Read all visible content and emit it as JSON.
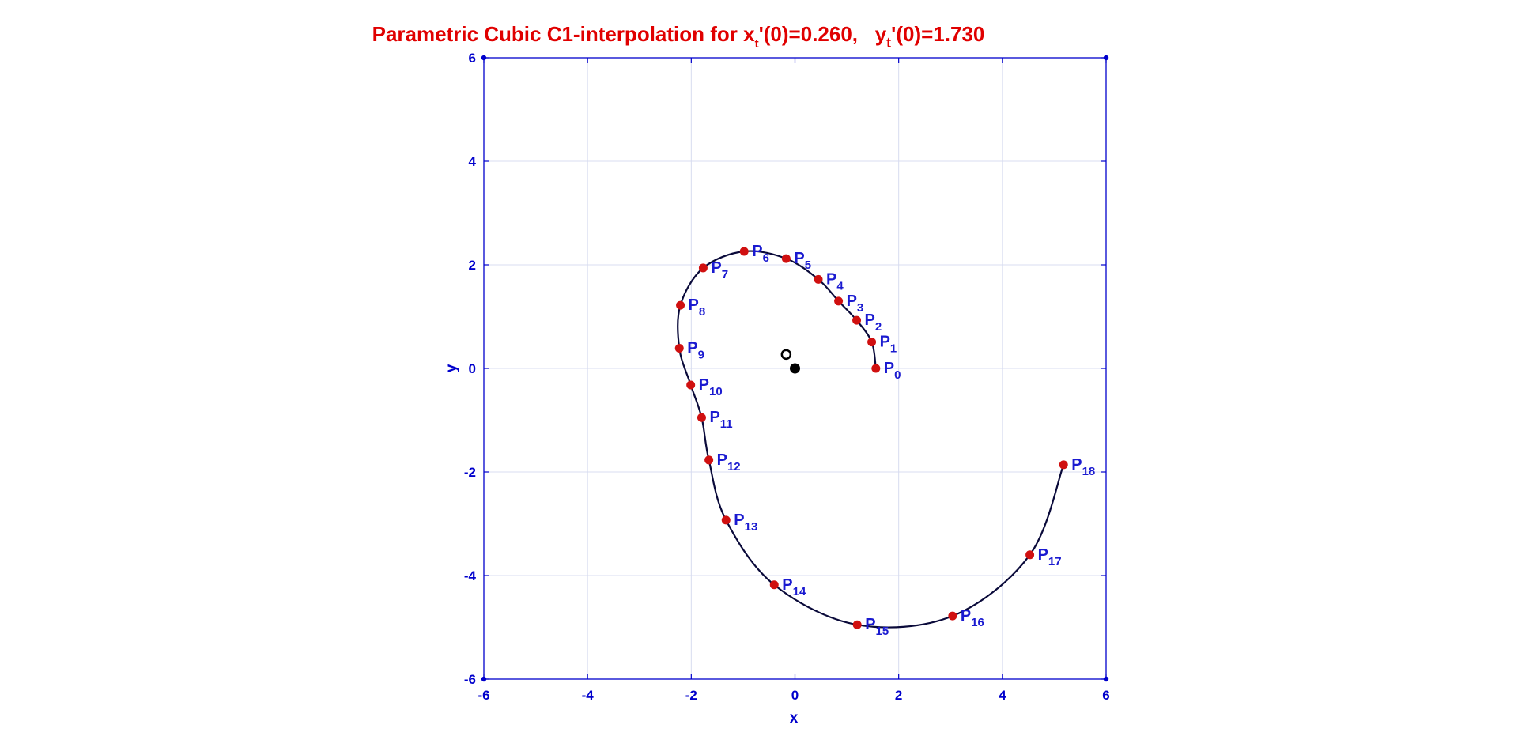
{
  "chart_data": {
    "type": "line",
    "title": {
      "prefix": "Parametric Cubic C1-interpolation  for x",
      "sub1": "t",
      "mid": "'(0)=0.260,   y",
      "sub2": "t",
      "suffix": "'(0)=1.730"
    },
    "xlabel": "x",
    "ylabel": "y",
    "xlim": [
      -6,
      6
    ],
    "ylim": [
      -6,
      6
    ],
    "xticks": [
      -6,
      -4,
      -2,
      0,
      2,
      4,
      6
    ],
    "yticks": [
      -6,
      -4,
      -2,
      0,
      2,
      4,
      6
    ],
    "xtick_labels": [
      "-6",
      "-4",
      "-2",
      "0",
      "2",
      "4",
      "6"
    ],
    "ytick_labels": [
      "-6",
      "-4",
      "-2",
      "0",
      "2",
      "4",
      "6"
    ],
    "grid": true,
    "points": [
      {
        "name": "P",
        "sub": "0",
        "x": 1.56,
        "y": 0.0
      },
      {
        "name": "P",
        "sub": "1",
        "x": 1.48,
        "y": 0.51
      },
      {
        "name": "P",
        "sub": "2",
        "x": 1.19,
        "y": 0.93
      },
      {
        "name": "P",
        "sub": "3",
        "x": 0.84,
        "y": 1.3
      },
      {
        "name": "P",
        "sub": "4",
        "x": 0.45,
        "y": 1.72
      },
      {
        "name": "P",
        "sub": "5",
        "x": -0.17,
        "y": 2.12
      },
      {
        "name": "P",
        "sub": "6",
        "x": -0.98,
        "y": 2.26
      },
      {
        "name": "P",
        "sub": "7",
        "x": -1.77,
        "y": 1.94
      },
      {
        "name": "P",
        "sub": "8",
        "x": -2.21,
        "y": 1.22
      },
      {
        "name": "P",
        "sub": "9",
        "x": -2.23,
        "y": 0.39
      },
      {
        "name": "P",
        "sub": "10",
        "x": -2.01,
        "y": -0.32
      },
      {
        "name": "P",
        "sub": "11",
        "x": -1.8,
        "y": -0.95
      },
      {
        "name": "P",
        "sub": "12",
        "x": -1.66,
        "y": -1.77
      },
      {
        "name": "P",
        "sub": "13",
        "x": -1.33,
        "y": -2.93
      },
      {
        "name": "P",
        "sub": "14",
        "x": -0.4,
        "y": -4.18
      },
      {
        "name": "P",
        "sub": "15",
        "x": 1.2,
        "y": -4.95
      },
      {
        "name": "P",
        "sub": "16",
        "x": 3.04,
        "y": -4.78
      },
      {
        "name": "P",
        "sub": "17",
        "x": 4.53,
        "y": -3.6
      },
      {
        "name": "P",
        "sub": "18",
        "x": 5.18,
        "y": -1.86
      }
    ],
    "markers": {
      "origin_filled": {
        "x": 0.0,
        "y": 0.0
      },
      "open_circle": {
        "x": -0.17,
        "y": 0.27
      }
    },
    "colors": {
      "title": "#e00000",
      "axis": "#0000cc",
      "grid": "#d8dcf0",
      "curve": "#0a0a3a",
      "point": "#d01010",
      "label": "#1a1ad0"
    }
  }
}
